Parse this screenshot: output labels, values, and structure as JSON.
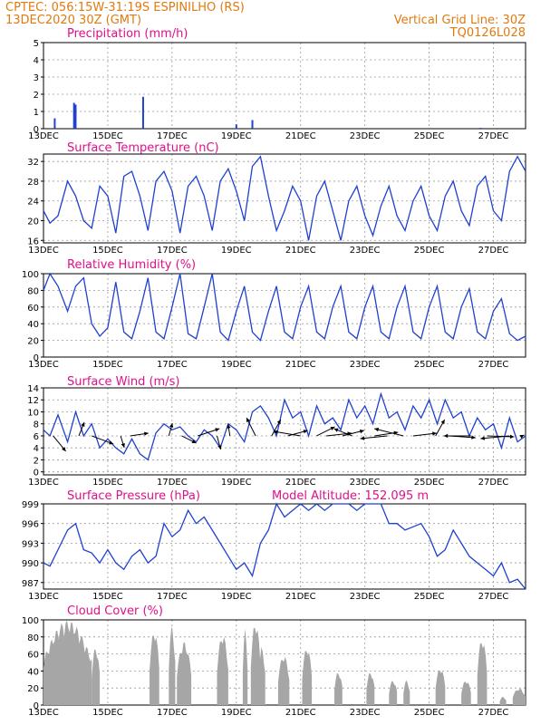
{
  "header": {
    "line1": "CPTEC:   056:15W-31:19S   ESPINILHO (RS)",
    "line2": "13DEC2020 30Z (GMT)",
    "right1": "Vertical Grid Line: 30Z",
    "right2": "TQ0126L028",
    "model_altitude": "Model Altitude: 152.095 m"
  },
  "colors": {
    "header": "#e07a10",
    "title": "#e0108a",
    "line": "#2040d0",
    "cloud": "#a6a6a6",
    "arrow": "#000000"
  },
  "chart_data": [
    {
      "type": "bar",
      "title": "Precipitation (mm/h)",
      "x_ticks": [
        "13DEC",
        "15DEC",
        "17DEC",
        "19DEC",
        "21DEC",
        "23DEC",
        "25DEC",
        "27DEC"
      ],
      "x_range_days": [
        0,
        15
      ],
      "ylim": [
        0,
        5
      ],
      "y_ticks": [
        "0",
        "1",
        "2",
        "3",
        "4",
        "5"
      ],
      "grid": true,
      "bars": [
        {
          "x": 0.35,
          "value": 0.6
        },
        {
          "x": 0.95,
          "value": 1.5
        },
        {
          "x": 1.0,
          "value": 1.4
        },
        {
          "x": 3.1,
          "value": 1.85
        },
        {
          "x": 6.0,
          "value": 0.25
        },
        {
          "x": 6.5,
          "value": 0.5
        },
        {
          "x": 13.6,
          "value": 0.05
        }
      ]
    },
    {
      "type": "line",
      "title": "Surface Temperature (nC)",
      "x_ticks": [
        "13DEC",
        "15DEC",
        "17DEC",
        "19DEC",
        "21DEC",
        "23DEC",
        "25DEC",
        "27DEC"
      ],
      "x_range_days": [
        0,
        15
      ],
      "ylim": [
        15.5,
        33.5
      ],
      "y_ticks": [
        "16",
        "20",
        "24",
        "28",
        "32"
      ],
      "grid": true,
      "x": [
        0,
        0.2,
        0.45,
        0.75,
        1.0,
        1.25,
        1.5,
        1.75,
        2.0,
        2.25,
        2.5,
        2.75,
        3.0,
        3.25,
        3.5,
        3.75,
        4.0,
        4.25,
        4.5,
        4.75,
        5.0,
        5.25,
        5.5,
        5.75,
        6.0,
        6.25,
        6.5,
        6.75,
        7.0,
        7.25,
        7.5,
        7.75,
        8.0,
        8.25,
        8.5,
        8.75,
        9.0,
        9.25,
        9.5,
        9.75,
        10.0,
        10.25,
        10.5,
        10.75,
        11.0,
        11.25,
        11.5,
        11.75,
        12.0,
        12.25,
        12.5,
        12.75,
        13.0,
        13.25,
        13.5,
        13.75,
        14.0,
        14.25,
        14.5,
        14.75,
        15.0
      ],
      "y": [
        22,
        19.5,
        21,
        28,
        25,
        20,
        18.5,
        27,
        25,
        17.5,
        29,
        30,
        25,
        18,
        28,
        30,
        26,
        17.5,
        27,
        29,
        25,
        18,
        28,
        30.5,
        26,
        20,
        31,
        33,
        25,
        18,
        22,
        27,
        24,
        16,
        25,
        28,
        22,
        16,
        24,
        27,
        21,
        17,
        23,
        27,
        21,
        18,
        24,
        27,
        21,
        18,
        25,
        28,
        22,
        19,
        27,
        29,
        22,
        20,
        30,
        33,
        30
      ]
    },
    {
      "type": "line",
      "title": "Relative Humidity (%)",
      "x_ticks": [
        "13DEC",
        "15DEC",
        "17DEC",
        "19DEC",
        "21DEC",
        "23DEC",
        "25DEC",
        "27DEC"
      ],
      "x_range_days": [
        0,
        15
      ],
      "ylim": [
        0,
        100
      ],
      "y_ticks": [
        "0",
        "20",
        "40",
        "60",
        "80",
        "100"
      ],
      "grid": true,
      "x": [
        0,
        0.2,
        0.45,
        0.75,
        1.0,
        1.25,
        1.5,
        1.75,
        2.0,
        2.25,
        2.5,
        2.75,
        3.0,
        3.25,
        3.5,
        3.75,
        4.0,
        4.25,
        4.5,
        4.75,
        5.0,
        5.25,
        5.5,
        5.75,
        6.0,
        6.25,
        6.5,
        6.75,
        7.0,
        7.25,
        7.5,
        7.75,
        8.0,
        8.25,
        8.5,
        8.75,
        9.0,
        9.25,
        9.5,
        9.75,
        10.0,
        10.25,
        10.5,
        10.75,
        11.0,
        11.25,
        11.5,
        11.75,
        12.0,
        12.25,
        12.5,
        12.75,
        13.0,
        13.25,
        13.5,
        13.75,
        14.0,
        14.25,
        14.5,
        14.75,
        15.0
      ],
      "y": [
        80,
        100,
        85,
        55,
        85,
        95,
        40,
        25,
        35,
        90,
        30,
        22,
        55,
        95,
        30,
        22,
        60,
        100,
        28,
        22,
        60,
        100,
        30,
        20,
        55,
        85,
        30,
        20,
        55,
        85,
        30,
        22,
        60,
        85,
        30,
        22,
        60,
        85,
        30,
        22,
        60,
        85,
        30,
        22,
        60,
        85,
        30,
        22,
        60,
        85,
        30,
        22,
        60,
        82,
        30,
        22,
        55,
        70,
        28,
        20,
        25
      ]
    },
    {
      "type": "line",
      "title": "Surface Wind (m/s)",
      "x_ticks": [
        "13DEC",
        "15DEC",
        "17DEC",
        "19DEC",
        "21DEC",
        "23DEC",
        "25DEC",
        "27DEC"
      ],
      "x_range_days": [
        0,
        15
      ],
      "ylim": [
        -0.5,
        14
      ],
      "y_ticks": [
        "0",
        "2",
        "4",
        "6",
        "8",
        "10",
        "12",
        "14"
      ],
      "grid": true,
      "x": [
        0,
        0.2,
        0.45,
        0.75,
        1.0,
        1.25,
        1.5,
        1.75,
        2.0,
        2.25,
        2.5,
        2.75,
        3.0,
        3.25,
        3.5,
        3.75,
        4.0,
        4.25,
        4.5,
        4.75,
        5.0,
        5.25,
        5.5,
        5.75,
        6.0,
        6.25,
        6.5,
        6.75,
        7.0,
        7.25,
        7.5,
        7.75,
        8.0,
        8.25,
        8.5,
        8.75,
        9.0,
        9.25,
        9.5,
        9.75,
        10.0,
        10.25,
        10.5,
        10.75,
        11.0,
        11.25,
        11.5,
        11.75,
        12.0,
        12.25,
        12.5,
        12.75,
        13.0,
        13.25,
        13.5,
        13.75,
        14.0,
        14.25,
        14.5,
        14.75,
        15.0
      ],
      "y": [
        7,
        6,
        9.5,
        5,
        10,
        6,
        8,
        4,
        5.5,
        4,
        3,
        5.5,
        3,
        2,
        6.5,
        8,
        7,
        7.5,
        6,
        5,
        7,
        6,
        4,
        8,
        7,
        5,
        10,
        11,
        9,
        6,
        12,
        9,
        10,
        6,
        11,
        8,
        9,
        7,
        12,
        9,
        11,
        8,
        13,
        9,
        10,
        7,
        11,
        9,
        12,
        8,
        12,
        9,
        10,
        6,
        9,
        7,
        8,
        4,
        9,
        5,
        6
      ],
      "vectors": [
        {
          "x": 0.3,
          "u": 0.7,
          "v": -1.7
        },
        {
          "x": 1.1,
          "u": 0.3,
          "v": 1.5
        },
        {
          "x": 1.5,
          "u": 1.2,
          "v": -0.9
        },
        {
          "x": 2.4,
          "u": 0.2,
          "v": -1.3
        },
        {
          "x": 2.7,
          "u": 1.0,
          "v": 0.3
        },
        {
          "x": 3.9,
          "u": 0.2,
          "v": 1.4
        },
        {
          "x": 4.3,
          "u": 0.8,
          "v": -0.8
        },
        {
          "x": 4.8,
          "u": 1.2,
          "v": 0.8
        },
        {
          "x": 5.4,
          "u": 0.2,
          "v": -1.5
        },
        {
          "x": 5.8,
          "u": -0.1,
          "v": 1.3
        },
        {
          "x": 6.6,
          "u": -0.5,
          "v": 2.0
        },
        {
          "x": 7.1,
          "u": 0.5,
          "v": 1.8
        },
        {
          "x": 7.6,
          "u": 1.1,
          "v": 0.6
        },
        {
          "x": 8.0,
          "u": -1.5,
          "v": 0.5
        },
        {
          "x": 8.5,
          "u": 1.0,
          "v": 1.0
        },
        {
          "x": 8.8,
          "u": 1.4,
          "v": 0.3
        },
        {
          "x": 9.3,
          "u": 1.2,
          "v": 0.6
        },
        {
          "x": 9.6,
          "u": -1.0,
          "v": 0.8
        },
        {
          "x": 10.3,
          "u": 1.3,
          "v": 0.4
        },
        {
          "x": 10.7,
          "u": -1.5,
          "v": -0.3
        },
        {
          "x": 11.2,
          "u": -1.6,
          "v": 0.8
        },
        {
          "x": 11.5,
          "u": 1.3,
          "v": 0.3
        },
        {
          "x": 12.2,
          "u": 0.5,
          "v": 1.8
        },
        {
          "x": 12.6,
          "u": 1.5,
          "v": -0.2
        },
        {
          "x": 13.3,
          "u": -1.5,
          "v": 0.0
        },
        {
          "x": 13.8,
          "u": 1.5,
          "v": -0.1
        },
        {
          "x": 14.5,
          "u": -1.6,
          "v": -0.3
        },
        {
          "x": 14.9,
          "u": 0.1,
          "v": 0.1
        }
      ]
    },
    {
      "type": "line",
      "title": "Surface Pressure (hPa)",
      "x_ticks": [
        "13DEC",
        "15DEC",
        "17DEC",
        "19DEC",
        "21DEC",
        "23DEC",
        "25DEC",
        "27DEC"
      ],
      "x_range_days": [
        0,
        15
      ],
      "ylim": [
        986,
        999
      ],
      "y_ticks": [
        "987",
        "990",
        "993",
        "996",
        "999"
      ],
      "grid": true,
      "x": [
        0,
        0.2,
        0.45,
        0.75,
        1.0,
        1.25,
        1.5,
        1.75,
        2.0,
        2.25,
        2.5,
        2.75,
        3.0,
        3.25,
        3.5,
        3.75,
        4.0,
        4.25,
        4.5,
        4.75,
        5.0,
        5.25,
        5.5,
        5.75,
        6.0,
        6.25,
        6.5,
        6.75,
        7.0,
        7.25,
        7.5,
        7.75,
        8.0,
        8.25,
        8.5,
        8.75,
        9.0,
        9.25,
        9.5,
        9.75,
        10.0,
        10.25,
        10.5,
        10.75,
        11.0,
        11.25,
        11.5,
        11.75,
        12.0,
        12.25,
        12.5,
        12.75,
        13.0,
        13.25,
        13.5,
        13.75,
        14.0,
        14.25,
        14.5,
        14.75,
        15.0
      ],
      "y": [
        990,
        989.5,
        992,
        995,
        996,
        992,
        991.5,
        990,
        992,
        990,
        989,
        991,
        992,
        990,
        991,
        996,
        994,
        995,
        998,
        996,
        997,
        995,
        993,
        991,
        989,
        990,
        988,
        993,
        995,
        999,
        997,
        998,
        1000,
        998,
        999,
        998,
        1000,
        999,
        1000,
        998,
        999,
        999.5,
        999,
        996,
        996,
        995,
        995.5,
        996,
        994,
        991,
        992,
        995,
        993,
        991,
        990,
        989,
        988,
        990,
        987,
        987.5,
        986
      ]
    },
    {
      "type": "area",
      "title": "Cloud Cover (%)",
      "x_ticks": [
        "13DEC",
        "15DEC",
        "17DEC",
        "19DEC",
        "21DEC",
        "23DEC",
        "25DEC",
        "27DEC"
      ],
      "x_range_days": [
        0,
        15
      ],
      "ylim": [
        0,
        100
      ],
      "y_ticks": [
        "0",
        "20",
        "40",
        "60",
        "80",
        "100"
      ],
      "grid": true,
      "blocks": [
        {
          "x0": 0.0,
          "x1": 1.5,
          "peak": 100
        },
        {
          "x0": 1.5,
          "x1": 1.75,
          "peak": 70
        },
        {
          "x0": 3.3,
          "x1": 3.6,
          "peak": 90
        },
        {
          "x0": 3.9,
          "x1": 4.1,
          "peak": 95
        },
        {
          "x0": 4.15,
          "x1": 4.6,
          "peak": 75
        },
        {
          "x0": 5.4,
          "x1": 5.75,
          "peak": 85
        },
        {
          "x0": 6.2,
          "x1": 6.35,
          "peak": 90
        },
        {
          "x0": 6.45,
          "x1": 6.75,
          "peak": 100
        },
        {
          "x0": 6.7,
          "x1": 6.9,
          "peak": 70
        },
        {
          "x0": 7.3,
          "x1": 7.65,
          "peak": 60
        },
        {
          "x0": 8.05,
          "x1": 8.35,
          "peak": 70
        },
        {
          "x0": 9.05,
          "x1": 9.3,
          "peak": 40
        },
        {
          "x0": 10.05,
          "x1": 10.3,
          "peak": 40
        },
        {
          "x0": 10.75,
          "x1": 11.0,
          "peak": 30
        },
        {
          "x0": 11.2,
          "x1": 11.4,
          "peak": 30
        },
        {
          "x0": 12.2,
          "x1": 12.5,
          "peak": 45
        },
        {
          "x0": 13.0,
          "x1": 13.3,
          "peak": 30
        },
        {
          "x0": 13.5,
          "x1": 13.8,
          "peak": 80
        },
        {
          "x0": 14.2,
          "x1": 14.4,
          "peak": 10
        },
        {
          "x0": 14.6,
          "x1": 15.0,
          "peak": 20
        }
      ]
    }
  ]
}
